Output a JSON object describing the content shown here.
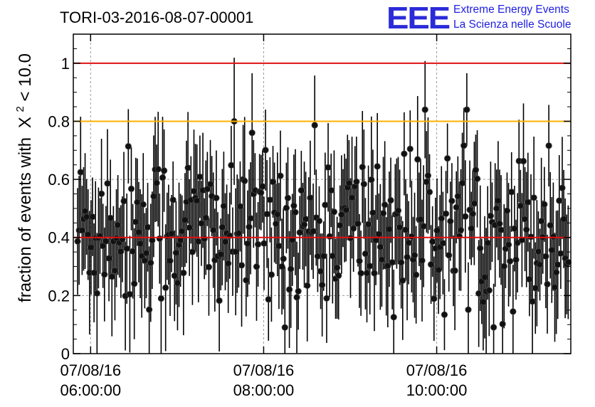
{
  "header": {
    "title": "TORI-03-2016-08-07-00001"
  },
  "logo": {
    "mark": "EEE",
    "line1": "Extreme Energy Events",
    "line2": "La Scienza nelle Scuole"
  },
  "chart_data": {
    "type": "scatter",
    "title": "TORI-03-2016-08-07-00001",
    "ylabel_prefix": "fraction of events with",
    "ylabel_symbol": "Χ",
    "ylabel_sup": "2",
    "ylabel_suffix": " < 10.0",
    "ylim": [
      0,
      1.1
    ],
    "xlim_hours": [
      5.8,
      11.55
    ],
    "y_ticks": [
      {
        "value": 0,
        "label": "0"
      },
      {
        "value": 0.2,
        "label": "0.2"
      },
      {
        "value": 0.4,
        "label": "0.4"
      },
      {
        "value": 0.6,
        "label": "0.6"
      },
      {
        "value": 0.8,
        "label": "0.8"
      },
      {
        "value": 1,
        "label": "1"
      }
    ],
    "x_ticks": [
      {
        "hour": 6,
        "date": "07/08/16",
        "time": "06:00:00"
      },
      {
        "hour": 8,
        "date": "07/08/16",
        "time": "08:00:00"
      },
      {
        "hour": 10,
        "date": "07/08/16",
        "time": "10:00:00"
      }
    ],
    "reference_lines": [
      {
        "y": 1.0,
        "color": "#e01010"
      },
      {
        "y": 0.8,
        "color": "#ffb000"
      },
      {
        "y": 0.4,
        "color": "#e01010"
      }
    ],
    "grid": true,
    "marker_color": "#000000",
    "n_points": 330,
    "y_mean": 0.43,
    "y_spread": 0.14,
    "error_half_width": 0.17
  }
}
